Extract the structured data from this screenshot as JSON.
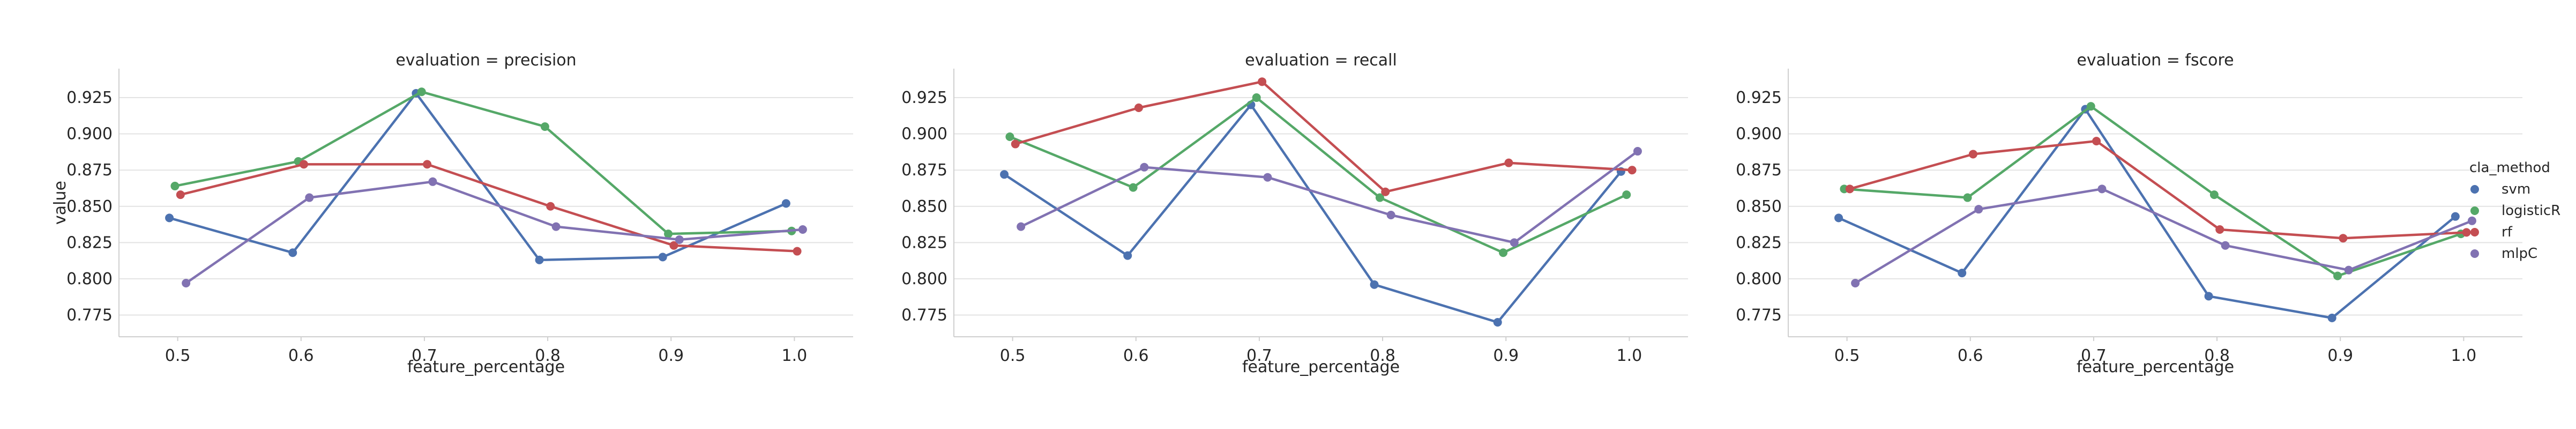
{
  "chart_data": {
    "type": "line",
    "panel_title_prefix": "evaluation = ",
    "xlabel": "feature_percentage",
    "ylabel": "value",
    "x": [
      0.5,
      0.6,
      0.7,
      0.8,
      0.9,
      1.0
    ],
    "x_tick_labels": [
      "0.5",
      "0.6",
      "0.7",
      "0.8",
      "0.9",
      "1.0"
    ],
    "y_ticks": [
      0.775,
      0.8,
      0.825,
      0.85,
      0.875,
      0.9,
      0.925
    ],
    "y_tick_labels": [
      "0.775",
      "0.800",
      "0.825",
      "0.850",
      "0.875",
      "0.900",
      "0.925"
    ],
    "ylim": [
      0.76,
      0.945
    ],
    "grid": true,
    "legend": {
      "title": "cla_method",
      "placement": "right"
    },
    "colors": {
      "svm": "#4c72b0",
      "logisticR": "#55a868",
      "rf": "#c44e52",
      "mlpC": "#8172b2"
    },
    "series_order": [
      "svm",
      "logisticR",
      "rf",
      "mlpC"
    ],
    "panels": [
      {
        "evaluation": "precision",
        "title": "evaluation = precision",
        "series": [
          {
            "name": "svm",
            "values": [
              0.842,
              0.818,
              0.928,
              0.813,
              0.815,
              0.852
            ]
          },
          {
            "name": "logisticR",
            "values": [
              0.864,
              0.881,
              0.929,
              0.905,
              0.831,
              0.833
            ]
          },
          {
            "name": "rf",
            "values": [
              0.858,
              0.879,
              0.879,
              0.85,
              0.823,
              0.819
            ]
          },
          {
            "name": "mlpC",
            "values": [
              0.797,
              0.856,
              0.867,
              0.836,
              0.827,
              0.834
            ]
          }
        ]
      },
      {
        "evaluation": "recall",
        "title": "evaluation = recall",
        "series": [
          {
            "name": "svm",
            "values": [
              0.872,
              0.816,
              0.92,
              0.796,
              0.77,
              0.874
            ]
          },
          {
            "name": "logisticR",
            "values": [
              0.898,
              0.863,
              0.925,
              0.856,
              0.818,
              0.858
            ]
          },
          {
            "name": "rf",
            "values": [
              0.893,
              0.918,
              0.936,
              0.86,
              0.88,
              0.875
            ]
          },
          {
            "name": "mlpC",
            "values": [
              0.836,
              0.877,
              0.87,
              0.844,
              0.825,
              0.888
            ]
          }
        ]
      },
      {
        "evaluation": "fscore",
        "title": "evaluation = fscore",
        "series": [
          {
            "name": "svm",
            "values": [
              0.842,
              0.804,
              0.917,
              0.788,
              0.773,
              0.843
            ]
          },
          {
            "name": "logisticR",
            "values": [
              0.862,
              0.856,
              0.919,
              0.858,
              0.802,
              0.831
            ]
          },
          {
            "name": "rf",
            "values": [
              0.862,
              0.886,
              0.895,
              0.834,
              0.828,
              0.832
            ]
          },
          {
            "name": "mlpC",
            "values": [
              0.797,
              0.848,
              0.862,
              0.823,
              0.806,
              0.84
            ]
          }
        ]
      }
    ]
  }
}
